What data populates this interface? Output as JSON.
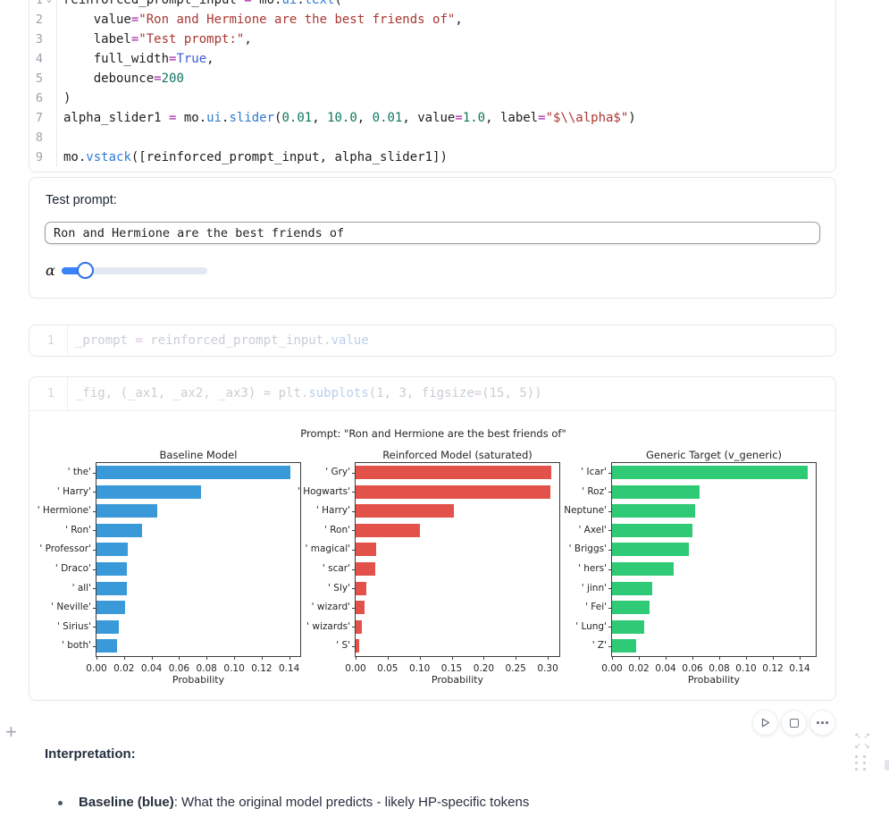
{
  "editor_cell": {
    "lines": [
      {
        "n": "1",
        "fold": true,
        "tokens": [
          [
            "reinforced_prompt_input ",
            "v"
          ],
          [
            "=",
            "o"
          ],
          [
            " mo.",
            "v"
          ],
          [
            "ui",
            "f"
          ],
          [
            ".",
            "v"
          ],
          [
            "text",
            "f"
          ],
          [
            "(",
            "v"
          ]
        ]
      },
      {
        "n": "2",
        "tokens": [
          [
            "    value",
            "v"
          ],
          [
            "=",
            "o"
          ],
          [
            "\"Ron and Hermione are the best friends of\"",
            "s"
          ],
          [
            ",",
            "v"
          ]
        ]
      },
      {
        "n": "3",
        "tokens": [
          [
            "    label",
            "v"
          ],
          [
            "=",
            "o"
          ],
          [
            "\"Test prompt:\"",
            "s"
          ],
          [
            ",",
            "v"
          ]
        ]
      },
      {
        "n": "4",
        "tokens": [
          [
            "    full_width",
            "v"
          ],
          [
            "=",
            "o"
          ],
          [
            "True",
            "k"
          ],
          [
            ",",
            "v"
          ]
        ]
      },
      {
        "n": "5",
        "tokens": [
          [
            "    debounce",
            "v"
          ],
          [
            "=",
            "o"
          ],
          [
            "200",
            "n"
          ]
        ]
      },
      {
        "n": "6",
        "tokens": [
          [
            ")",
            "v"
          ]
        ]
      },
      {
        "n": "7",
        "tokens": [
          [
            "alpha_slider1 ",
            "v"
          ],
          [
            "=",
            "o"
          ],
          [
            " mo.",
            "v"
          ],
          [
            "ui",
            "f"
          ],
          [
            ".",
            "v"
          ],
          [
            "slider",
            "f"
          ],
          [
            "(",
            "v"
          ],
          [
            "0.01",
            "n"
          ],
          [
            ", ",
            "v"
          ],
          [
            "10.0",
            "n"
          ],
          [
            ", ",
            "v"
          ],
          [
            "0.01",
            "n"
          ],
          [
            ", value",
            "v"
          ],
          [
            "=",
            "o"
          ],
          [
            "1.0",
            "n"
          ],
          [
            ", label",
            "v"
          ],
          [
            "=",
            "o"
          ],
          [
            "\"$\\\\alpha$\"",
            "s"
          ],
          [
            ")",
            "v"
          ]
        ]
      },
      {
        "n": "8",
        "tokens": []
      },
      {
        "n": "9",
        "tokens": [
          [
            "mo.",
            "v"
          ],
          [
            "vstack",
            "f"
          ],
          [
            "([reinforced_prompt_input, alpha_slider1])",
            "v"
          ]
        ]
      }
    ]
  },
  "output1": {
    "label": "Test prompt:",
    "input_value": "Ron and Hermione are the best friends of",
    "slider": {
      "label": "α",
      "fraction": 0.16
    }
  },
  "stale_cell_1": {
    "lines": [
      {
        "n": "1",
        "tokens": [
          [
            "_prompt ",
            "fv"
          ],
          [
            "=",
            "fo"
          ],
          [
            " reinforced_prompt_input.",
            "fv"
          ],
          [
            "value",
            "ff"
          ]
        ]
      }
    ]
  },
  "stale_cell_2": {
    "lines": [
      {
        "n": "1",
        "tokens": [
          [
            "_fig, (_ax1, _ax2, _ax3) ",
            "fv"
          ],
          [
            "=",
            "fo"
          ],
          [
            " plt.",
            "fv"
          ],
          [
            "subplots",
            "ff"
          ],
          [
            "(1, 3, figsize",
            "fv"
          ],
          [
            "=",
            "fo"
          ],
          [
            "(15, 5))",
            "fv"
          ]
        ]
      }
    ]
  },
  "figure": {
    "suptitle": "Prompt: \"Ron and Hermione are the best friends of\""
  },
  "chart_data": [
    {
      "type": "bar",
      "orientation": "horizontal",
      "title": "Baseline Model",
      "color": "#3a9ad9",
      "xlabel": "Probability",
      "xlim": [
        0,
        0.148
      ],
      "xticks": [
        0,
        0.02,
        0.04,
        0.06,
        0.08,
        0.1,
        0.12,
        0.14
      ],
      "categories": [
        "' the'",
        "' Harry'",
        "' Hermione'",
        "' Ron'",
        "' Professor'",
        "' Draco'",
        "' all'",
        "' Neville'",
        "' Sirius'",
        "' both'"
      ],
      "values": [
        0.141,
        0.076,
        0.044,
        0.033,
        0.023,
        0.022,
        0.022,
        0.021,
        0.016,
        0.015
      ]
    },
    {
      "type": "bar",
      "orientation": "horizontal",
      "title": "Reinforced Model (saturated)",
      "color": "#e3524a",
      "xlabel": "Probability",
      "xlim": [
        0,
        0.318
      ],
      "xticks": [
        0,
        0.05,
        0.1,
        0.15,
        0.2,
        0.25,
        0.3
      ],
      "categories": [
        "' Gry'",
        "' Hogwarts'",
        "' Harry'",
        "' Ron'",
        "' magical'",
        "' scar'",
        "' Sly'",
        "' wizard'",
        "' wizards'",
        "' S'"
      ],
      "values": [
        0.305,
        0.304,
        0.154,
        0.101,
        0.032,
        0.03,
        0.016,
        0.014,
        0.01,
        0.005
      ]
    },
    {
      "type": "bar",
      "orientation": "horizontal",
      "title": "Generic Target (v_generic)",
      "color": "#2fca75",
      "xlabel": "Probability",
      "xlim": [
        0,
        0.152
      ],
      "xticks": [
        0,
        0.02,
        0.04,
        0.06,
        0.08,
        0.1,
        0.12,
        0.14
      ],
      "categories": [
        "' Icar'",
        "' Roz'",
        "' Neptune'",
        "' Axel'",
        "' Briggs'",
        "' hers'",
        "' jinn'",
        "' Fei'",
        "' Lung'",
        "' Z'"
      ],
      "values": [
        0.146,
        0.065,
        0.062,
        0.06,
        0.057,
        0.046,
        0.03,
        0.028,
        0.024,
        0.018
      ]
    }
  ],
  "icons": {
    "fold_chevron": "⌄",
    "plus": "+",
    "expand_arrows": [
      "↖",
      "↗",
      "↙",
      "↘"
    ]
  },
  "interpretation": {
    "heading": "Interpretation:",
    "bullet_bold": "Baseline (blue)",
    "bullet_rest": ": What the original model predicts - likely HP-specific tokens"
  }
}
